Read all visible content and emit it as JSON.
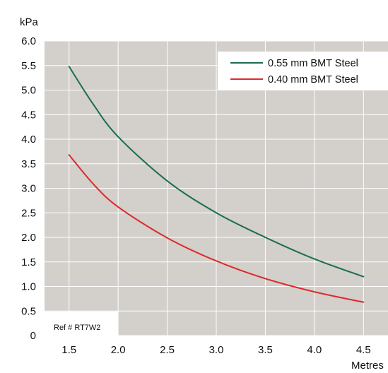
{
  "chart_data": {
    "type": "line",
    "ylabel": "kPa",
    "xlabel": "Metres",
    "xlim": [
      1.25,
      4.75
    ],
    "ylim": [
      0,
      6.0
    ],
    "x_ticks": [
      "1.5",
      "2.0",
      "2.5",
      "3.0",
      "3.5",
      "4.0",
      "4.5"
    ],
    "y_ticks": [
      "0",
      "0.5",
      "1.0",
      "1.5",
      "2.0",
      "2.5",
      "3.0",
      "3.5",
      "4.0",
      "4.5",
      "5.0",
      "5.5",
      "6.0"
    ],
    "grid": true,
    "legend_position": "top-right",
    "annotation": "Ref # RT7W2",
    "background_color": "#d3cfcb",
    "series": [
      {
        "name": "0.55 mm BMT Steel",
        "color": "#1a6e50",
        "points": [
          [
            1.5,
            5.48
          ],
          [
            1.75,
            4.7
          ],
          [
            2.0,
            4.05
          ],
          [
            2.5,
            3.15
          ],
          [
            3.0,
            2.5
          ],
          [
            3.5,
            2.0
          ],
          [
            4.0,
            1.56
          ],
          [
            4.5,
            1.2
          ]
        ]
      },
      {
        "name": "0.40 mm BMT Steel",
        "color": "#dd2a2a",
        "points": [
          [
            1.5,
            3.68
          ],
          [
            1.75,
            3.08
          ],
          [
            2.0,
            2.62
          ],
          [
            2.5,
            1.99
          ],
          [
            3.0,
            1.52
          ],
          [
            3.5,
            1.16
          ],
          [
            4.0,
            0.89
          ],
          [
            4.5,
            0.68
          ]
        ]
      }
    ]
  }
}
